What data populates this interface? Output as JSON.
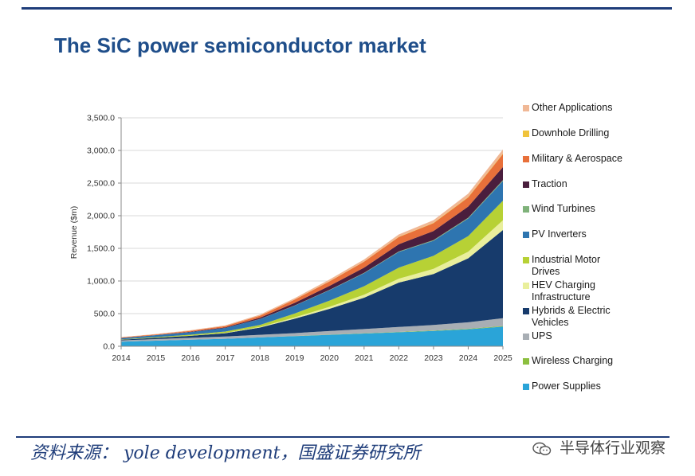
{
  "title": "The SiC power semiconductor market",
  "source": "资料来源： yole development，国盛证券研究所",
  "watermark": "半导体行业观察",
  "chart_data": {
    "type": "area",
    "stacked": true,
    "title": "",
    "xlabel": "",
    "ylabel": "Revenue ($m)",
    "ylim": [
      0,
      3500
    ],
    "yticks": [
      0,
      500,
      1000,
      1500,
      2000,
      2500,
      3000,
      3500
    ],
    "ytick_labels": [
      "0.0",
      "500.0",
      "1,000.0",
      "1,500.0",
      "2,000.0",
      "2,500.0",
      "3,000.0",
      "3,500.0"
    ],
    "x": [
      "2014",
      "2015",
      "2016",
      "2017",
      "2018",
      "2019",
      "2020",
      "2021",
      "2022",
      "2023",
      "2024",
      "2025"
    ],
    "grid": true,
    "legend_position": "right",
    "series": [
      {
        "name": "Power Supplies",
        "color": "#2aa4d8",
        "values": [
          70,
          85,
          100,
          115,
          135,
          155,
          175,
          195,
          215,
          235,
          260,
          300
        ]
      },
      {
        "name": "Wireless Charging",
        "color": "#8cbf3f",
        "values": [
          0,
          0,
          0,
          0,
          1,
          2,
          3,
          4,
          5,
          6,
          8,
          10
        ]
      },
      {
        "name": "UPS",
        "color": "#a8aeb4",
        "values": [
          20,
          25,
          30,
          35,
          40,
          45,
          55,
          65,
          75,
          85,
          100,
          120
        ]
      },
      {
        "name": "Hybrids & Electric Vehicles",
        "color": "#173b6c",
        "values": [
          10,
          20,
          30,
          50,
          110,
          220,
          340,
          480,
          680,
          780,
          980,
          1350
        ]
      },
      {
        "name": "HEV Charging Infrastructure",
        "color": "#e9ef9c",
        "values": [
          0,
          0,
          2,
          5,
          10,
          20,
          30,
          45,
          60,
          80,
          100,
          150
        ]
      },
      {
        "name": "Industrial Motor Drives",
        "color": "#b7d135",
        "values": [
          5,
          10,
          15,
          20,
          30,
          60,
          95,
          130,
          170,
          200,
          240,
          300
        ]
      },
      {
        "name": "PV Inverters",
        "color": "#2e75b0",
        "values": [
          20,
          30,
          40,
          55,
          90,
          120,
          160,
          200,
          240,
          230,
          270,
          300
        ]
      },
      {
        "name": "Wind Turbines",
        "color": "#7fb27a",
        "values": [
          0,
          0,
          0,
          0,
          2,
          3,
          5,
          6,
          8,
          10,
          12,
          15
        ]
      },
      {
        "name": "Traction",
        "color": "#4a1e3d",
        "values": [
          0,
          0,
          5,
          10,
          20,
          40,
          60,
          80,
          110,
          140,
          170,
          200
        ]
      },
      {
        "name": "Military & Aerospace",
        "color": "#e8703a",
        "values": [
          10,
          12,
          15,
          20,
          30,
          50,
          70,
          90,
          110,
          120,
          140,
          200
        ]
      },
      {
        "name": "Downhole Drilling",
        "color": "#f0c33c",
        "values": [
          0,
          0,
          0,
          0,
          1,
          2,
          3,
          4,
          5,
          6,
          8,
          10
        ]
      },
      {
        "name": "Other Applications",
        "color": "#f0b896",
        "values": [
          5,
          6,
          8,
          10,
          15,
          20,
          25,
          30,
          35,
          40,
          50,
          60
        ]
      }
    ],
    "legend_order": [
      "Other Applications",
      "Downhole Drilling",
      "Military & Aerospace",
      "Traction",
      "Wind Turbines",
      "PV Inverters",
      "Industrial Motor Drives",
      "HEV Charging Infrastructure",
      "Hybrids & Electric Vehicles",
      "UPS",
      "Wireless Charging",
      "Power Supplies"
    ]
  }
}
